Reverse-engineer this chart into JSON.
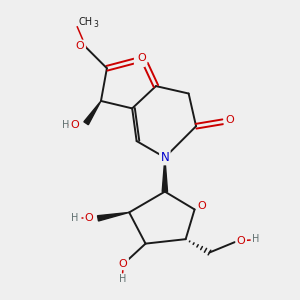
{
  "bg_color": "#efefef",
  "bond_color": "#1a1a1a",
  "atom_colors": {
    "O": "#cc0000",
    "N": "#0000cc",
    "C": "#1a1a1a",
    "H": "#607070"
  },
  "fig_width": 3.0,
  "fig_height": 3.0
}
